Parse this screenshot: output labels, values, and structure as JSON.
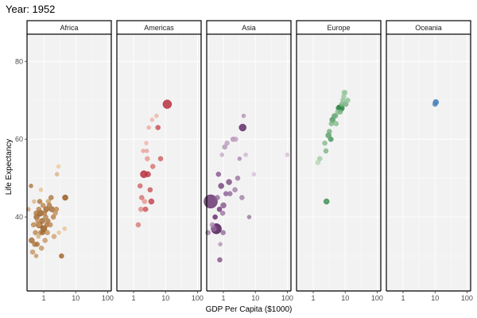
{
  "chart_data": {
    "type": "scatter",
    "title": "Year: 1952",
    "xlabel": "GDP Per Capita ($1000)",
    "ylabel": "Life Expectancy",
    "x_scale": "log10",
    "xlim": [
      0.3,
      130
    ],
    "ylim": [
      21,
      87
    ],
    "x_ticks": [
      1,
      10,
      100
    ],
    "x_tick_labels": [
      "1",
      "10",
      "100"
    ],
    "y_ticks": [
      40,
      60,
      80
    ],
    "y_tick_labels": [
      "40",
      "60",
      "80"
    ],
    "grid": true,
    "legend": "none",
    "facets": [
      {
        "name": "Africa",
        "color_light": "#fee0b6",
        "color_dark": "#8c4a0b",
        "points": [
          {
            "x": 0.33,
            "y": 42,
            "s": 2.5,
            "c": 0.4
          },
          {
            "x": 0.4,
            "y": 48,
            "s": 2.5,
            "c": 0.7
          },
          {
            "x": 0.42,
            "y": 34,
            "s": 3.5,
            "c": 0.8
          },
          {
            "x": 0.45,
            "y": 31,
            "s": 3,
            "c": 0.5
          },
          {
            "x": 0.48,
            "y": 38,
            "s": 3,
            "c": 0.6
          },
          {
            "x": 0.5,
            "y": 44,
            "s": 2.5,
            "c": 0.3
          },
          {
            "x": 0.52,
            "y": 33,
            "s": 3,
            "c": 0.7
          },
          {
            "x": 0.55,
            "y": 36,
            "s": 3,
            "c": 0.6
          },
          {
            "x": 0.58,
            "y": 30,
            "s": 2.5,
            "c": 0.5
          },
          {
            "x": 0.6,
            "y": 40,
            "s": 3.5,
            "c": 0.85
          },
          {
            "x": 0.62,
            "y": 33,
            "s": 3,
            "c": 0.75
          },
          {
            "x": 0.65,
            "y": 39,
            "s": 3,
            "c": 0.55
          },
          {
            "x": 0.68,
            "y": 35,
            "s": 2.5,
            "c": 0.35
          },
          {
            "x": 0.7,
            "y": 42,
            "s": 3,
            "c": 0.65
          },
          {
            "x": 0.72,
            "y": 38,
            "s": 4,
            "c": 0.95
          },
          {
            "x": 0.75,
            "y": 44,
            "s": 3,
            "c": 0.7
          },
          {
            "x": 0.78,
            "y": 41,
            "s": 4,
            "c": 0.9
          },
          {
            "x": 0.8,
            "y": 36,
            "s": 3,
            "c": 0.6
          },
          {
            "x": 0.82,
            "y": 47,
            "s": 2.5,
            "c": 0.2
          },
          {
            "x": 0.85,
            "y": 32,
            "s": 3,
            "c": 0.5
          },
          {
            "x": 0.9,
            "y": 39,
            "s": 3.5,
            "c": 0.8
          },
          {
            "x": 0.95,
            "y": 43,
            "s": 3,
            "c": 0.6
          },
          {
            "x": 1.0,
            "y": 37,
            "s": 4,
            "c": 0.95
          },
          {
            "x": 1.05,
            "y": 41,
            "s": 3,
            "c": 0.7
          },
          {
            "x": 1.1,
            "y": 34,
            "s": 3,
            "c": 0.5
          },
          {
            "x": 1.15,
            "y": 40,
            "s": 3,
            "c": 0.65
          },
          {
            "x": 1.2,
            "y": 42,
            "s": 3.5,
            "c": 0.85
          },
          {
            "x": 1.25,
            "y": 38,
            "s": 3,
            "c": 0.75
          },
          {
            "x": 1.3,
            "y": 36,
            "s": 3,
            "c": 0.55
          },
          {
            "x": 1.4,
            "y": 44,
            "s": 3,
            "c": 0.45
          },
          {
            "x": 1.5,
            "y": 43,
            "s": 3,
            "c": 0.7
          },
          {
            "x": 1.6,
            "y": 38,
            "s": 3,
            "c": 0.6
          },
          {
            "x": 1.7,
            "y": 45,
            "s": 3,
            "c": 0.7
          },
          {
            "x": 1.8,
            "y": 42,
            "s": 3.5,
            "c": 0.8
          },
          {
            "x": 2.0,
            "y": 40,
            "s": 3,
            "c": 0.65
          },
          {
            "x": 2.1,
            "y": 35,
            "s": 3,
            "c": 0.4
          },
          {
            "x": 2.3,
            "y": 41,
            "s": 3,
            "c": 0.55
          },
          {
            "x": 2.5,
            "y": 42,
            "s": 3,
            "c": 0.6
          },
          {
            "x": 2.6,
            "y": 51,
            "s": 2.5,
            "c": 0.3
          },
          {
            "x": 2.9,
            "y": 53,
            "s": 2.5,
            "c": 0.15
          },
          {
            "x": 3.0,
            "y": 36,
            "s": 2.5,
            "c": 0.2
          },
          {
            "x": 3.6,
            "y": 30,
            "s": 3,
            "c": 0.85
          },
          {
            "x": 4.5,
            "y": 37,
            "s": 2.5,
            "c": 0.2
          },
          {
            "x": 4.7,
            "y": 45,
            "s": 3.5,
            "c": 0.95
          },
          {
            "x": 0.58,
            "y": 41,
            "s": 3,
            "c": 0.7
          },
          {
            "x": 0.7,
            "y": 38,
            "s": 3,
            "c": 0.5
          },
          {
            "x": 0.92,
            "y": 36,
            "s": 3,
            "c": 0.8
          },
          {
            "x": 1.35,
            "y": 39,
            "s": 3,
            "c": 0.7
          }
        ]
      },
      {
        "name": "Americas",
        "color_light": "#fddbc7",
        "color_dark": "#b2182b",
        "points": [
          {
            "x": 1.4,
            "y": 38,
            "s": 3,
            "c": 0.5
          },
          {
            "x": 1.6,
            "y": 48,
            "s": 3,
            "c": 0.6
          },
          {
            "x": 1.7,
            "y": 42,
            "s": 3,
            "c": 0.4
          },
          {
            "x": 1.8,
            "y": 45,
            "s": 3,
            "c": 0.55
          },
          {
            "x": 2.0,
            "y": 57,
            "s": 2.5,
            "c": 0.3
          },
          {
            "x": 2.1,
            "y": 51,
            "s": 4.5,
            "c": 0.95
          },
          {
            "x": 2.3,
            "y": 42,
            "s": 3,
            "c": 0.5
          },
          {
            "x": 2.5,
            "y": 59,
            "s": 2.5,
            "c": 0.2
          },
          {
            "x": 2.7,
            "y": 55,
            "s": 3,
            "c": 0.35
          },
          {
            "x": 2.8,
            "y": 51,
            "s": 3.5,
            "c": 0.85
          },
          {
            "x": 3.0,
            "y": 63,
            "s": 2.5,
            "c": 0.25
          },
          {
            "x": 3.3,
            "y": 47,
            "s": 3,
            "c": 0.7
          },
          {
            "x": 3.6,
            "y": 44,
            "s": 3.5,
            "c": 0.8
          },
          {
            "x": 3.8,
            "y": 65,
            "s": 2.5,
            "c": 0.2
          },
          {
            "x": 4.0,
            "y": 53,
            "s": 3,
            "c": 0.55
          },
          {
            "x": 5.2,
            "y": 66,
            "s": 2.5,
            "c": 0.2
          },
          {
            "x": 5.8,
            "y": 63,
            "s": 3,
            "c": 0.75
          },
          {
            "x": 7.0,
            "y": 55,
            "s": 3,
            "c": 0.65
          },
          {
            "x": 11.3,
            "y": 69,
            "s": 5.5,
            "c": 0.95
          },
          {
            "x": 2.4,
            "y": 42,
            "s": 3,
            "c": 0.6
          },
          {
            "x": 2.2,
            "y": 44,
            "s": 3,
            "c": 0.35
          },
          {
            "x": 2.6,
            "y": 57,
            "s": 2.5,
            "c": 0.3
          }
        ]
      },
      {
        "name": "Asia",
        "color_light": "#e7d4e8",
        "color_dark": "#40004b",
        "points": [
          {
            "x": 0.33,
            "y": 36,
            "s": 3,
            "c": 0.4
          },
          {
            "x": 0.4,
            "y": 44,
            "s": 8.5,
            "c": 0.8
          },
          {
            "x": 0.45,
            "y": 38,
            "s": 3,
            "c": 0.35
          },
          {
            "x": 0.5,
            "y": 37,
            "s": 3.5,
            "c": 0.5
          },
          {
            "x": 0.55,
            "y": 40,
            "s": 3,
            "c": 0.45
          },
          {
            "x": 0.6,
            "y": 37,
            "s": 6.5,
            "c": 0.95
          },
          {
            "x": 0.65,
            "y": 45,
            "s": 3,
            "c": 0.5
          },
          {
            "x": 0.7,
            "y": 51,
            "s": 3,
            "c": 0.6
          },
          {
            "x": 0.75,
            "y": 42,
            "s": 3,
            "c": 0.75
          },
          {
            "x": 0.77,
            "y": 29,
            "s": 3,
            "c": 0.6
          },
          {
            "x": 0.8,
            "y": 33,
            "s": 2.5,
            "c": 0.3
          },
          {
            "x": 0.85,
            "y": 48,
            "s": 3.5,
            "c": 0.7
          },
          {
            "x": 0.9,
            "y": 56,
            "s": 2.5,
            "c": 0.2
          },
          {
            "x": 0.95,
            "y": 41,
            "s": 3,
            "c": 0.45
          },
          {
            "x": 1.0,
            "y": 43,
            "s": 3.5,
            "c": 0.6
          },
          {
            "x": 1.1,
            "y": 58,
            "s": 3,
            "c": 0.3
          },
          {
            "x": 1.2,
            "y": 46,
            "s": 3,
            "c": 0.55
          },
          {
            "x": 1.3,
            "y": 59,
            "s": 3,
            "c": 0.25
          },
          {
            "x": 1.5,
            "y": 49,
            "s": 3.5,
            "c": 0.65
          },
          {
            "x": 1.6,
            "y": 46,
            "s": 3,
            "c": 0.5
          },
          {
            "x": 2.0,
            "y": 60,
            "s": 3,
            "c": 0.3
          },
          {
            "x": 2.3,
            "y": 47,
            "s": 3,
            "c": 0.4
          },
          {
            "x": 2.4,
            "y": 60,
            "s": 3,
            "c": 0.25
          },
          {
            "x": 2.8,
            "y": 50,
            "s": 3,
            "c": 0.45
          },
          {
            "x": 3.2,
            "y": 55,
            "s": 2.5,
            "c": 0.35
          },
          {
            "x": 3.8,
            "y": 45,
            "s": 3,
            "c": 0.4
          },
          {
            "x": 4.0,
            "y": 63,
            "s": 4.5,
            "c": 0.85
          },
          {
            "x": 4.3,
            "y": 66,
            "s": 2.5,
            "c": 0.3
          },
          {
            "x": 5.0,
            "y": 56,
            "s": 2.5,
            "c": 0.15
          },
          {
            "x": 6.4,
            "y": 40,
            "s": 2.5,
            "c": 0.45
          },
          {
            "x": 9.0,
            "y": 51,
            "s": 2.5,
            "c": 0.1
          },
          {
            "x": 100,
            "y": 56,
            "s": 2.5,
            "c": 0.1
          },
          {
            "x": 0.98,
            "y": 36,
            "s": 3,
            "c": 0.5
          },
          {
            "x": 0.55,
            "y": 40,
            "s": 3,
            "c": 0.7
          }
        ]
      },
      {
        "name": "Europe",
        "color_light": "#d9f0d3",
        "color_dark": "#1b7837",
        "points": [
          {
            "x": 1.6,
            "y": 55,
            "s": 3,
            "c": 0.3
          },
          {
            "x": 1.4,
            "y": 54,
            "s": 3,
            "c": 0.2
          },
          {
            "x": 2.3,
            "y": 59,
            "s": 3,
            "c": 0.45
          },
          {
            "x": 2.5,
            "y": 57,
            "s": 3,
            "c": 0.5
          },
          {
            "x": 2.6,
            "y": 44,
            "s": 3.5,
            "c": 0.85
          },
          {
            "x": 3.0,
            "y": 61,
            "s": 3.5,
            "c": 0.7
          },
          {
            "x": 3.2,
            "y": 62,
            "s": 3,
            "c": 0.55
          },
          {
            "x": 3.5,
            "y": 60,
            "s": 3,
            "c": 0.6
          },
          {
            "x": 3.7,
            "y": 64,
            "s": 3,
            "c": 0.5
          },
          {
            "x": 4.0,
            "y": 65,
            "s": 3.5,
            "c": 0.75
          },
          {
            "x": 4.5,
            "y": 66,
            "s": 3,
            "c": 0.6
          },
          {
            "x": 5.2,
            "y": 64,
            "s": 3,
            "c": 0.45
          },
          {
            "x": 5.8,
            "y": 67,
            "s": 3,
            "c": 0.4
          },
          {
            "x": 6.5,
            "y": 68,
            "s": 4,
            "c": 0.9
          },
          {
            "x": 7.3,
            "y": 68,
            "s": 4.5,
            "c": 0.95
          },
          {
            "x": 7.8,
            "y": 69,
            "s": 3,
            "c": 0.5
          },
          {
            "x": 8.5,
            "y": 70,
            "s": 3,
            "c": 0.4
          },
          {
            "x": 9.0,
            "y": 71,
            "s": 3,
            "c": 0.35
          },
          {
            "x": 9.2,
            "y": 72,
            "s": 3,
            "c": 0.3
          },
          {
            "x": 9.8,
            "y": 72,
            "s": 3,
            "c": 0.35
          },
          {
            "x": 10.5,
            "y": 69,
            "s": 3,
            "c": 0.55
          },
          {
            "x": 12.0,
            "y": 70,
            "s": 3,
            "c": 0.4
          },
          {
            "x": 5.0,
            "y": 66,
            "s": 3,
            "c": 0.55
          },
          {
            "x": 3.6,
            "y": 60,
            "s": 3,
            "c": 0.65
          },
          {
            "x": 7.0,
            "y": 67,
            "s": 3,
            "c": 0.5
          }
        ]
      },
      {
        "name": "Oceania",
        "color_light": "#d1e5f0",
        "color_dark": "#2166ac",
        "points": [
          {
            "x": 10.0,
            "y": 69,
            "s": 3,
            "c": 0.75
          },
          {
            "x": 10.6,
            "y": 69.5,
            "s": 3.5,
            "c": 0.9
          }
        ]
      }
    ]
  }
}
